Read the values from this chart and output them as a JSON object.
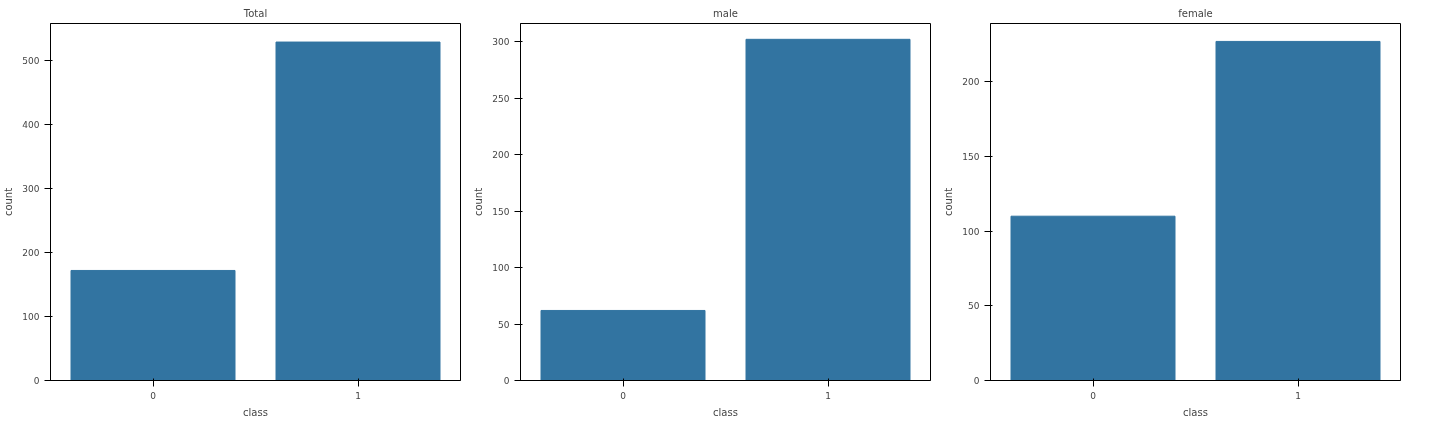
{
  "chart_data": [
    {
      "type": "bar",
      "title": "Total",
      "xlabel": "class",
      "ylabel": "count",
      "categories": [
        "0",
        "1"
      ],
      "values": [
        172,
        529
      ],
      "color": "#3274a1",
      "ylim": [
        0,
        558
      ],
      "yticks": [
        0,
        100,
        200,
        300,
        400,
        500
      ],
      "grid": false
    },
    {
      "type": "bar",
      "title": "male",
      "xlabel": "class",
      "ylabel": "count",
      "categories": [
        "0",
        "1"
      ],
      "values": [
        62,
        302
      ],
      "color": "#3274a1",
      "ylim": [
        0,
        316
      ],
      "yticks": [
        0,
        50,
        100,
        150,
        200,
        250,
        300
      ],
      "grid": false
    },
    {
      "type": "bar",
      "title": "female",
      "xlabel": "class",
      "ylabel": "count",
      "categories": [
        "0",
        "1"
      ],
      "values": [
        110,
        227
      ],
      "color": "#3274a1",
      "ylim": [
        0,
        239
      ],
      "yticks": [
        0,
        50,
        100,
        150,
        200
      ],
      "grid": false
    }
  ]
}
